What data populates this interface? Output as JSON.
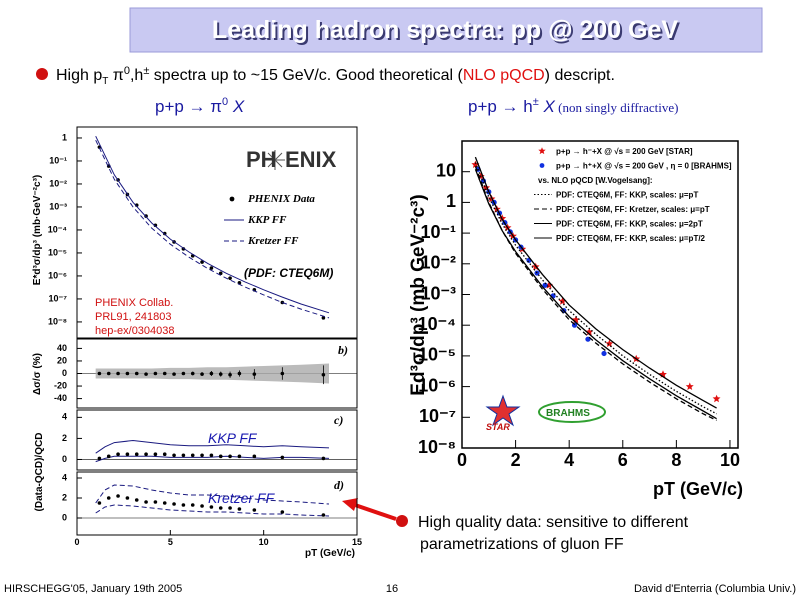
{
  "title": "Leading hadron spectra: pp @ 200 GeV",
  "bullets": [
    [
      "High p",
      "T",
      " π",
      "0",
      ",h",
      "±",
      " spectra up to ~15 GeV/c. Good theoretical (",
      "NLO pQCD",
      ") descript."
    ],
    [
      "High quality data: sensitive to different",
      "parametrizations of gluon FF"
    ]
  ],
  "subtitles": [
    [
      "p+p → π",
      "0",
      " X"
    ],
    [
      "p+p → h",
      "±",
      " X",
      " (non singly diffractive)"
    ]
  ],
  "footer": {
    "left": "HIRSCHEGG'05, January 19th 2005",
    "center": "16",
    "right": "David d'Enterria (Columbia Univ.)"
  },
  "chart_data": [
    {
      "type": "scatter",
      "log_y": true,
      "ylabel": "E*d³σ/dp³ (mb·GeV⁻²c³)",
      "xlim": [
        0,
        15
      ],
      "ylim": [
        2e-09,
        3
      ],
      "yticks": [
        1,
        {
          "value": 0.1,
          "label": "10⁻¹"
        },
        {
          "value": 0.01,
          "label": "10⁻²"
        },
        {
          "value": 0.001,
          "label": "10⁻³"
        },
        {
          "value": 0.0001,
          "label": "10⁻⁴"
        },
        {
          "value": 1e-05,
          "label": "10⁻⁵"
        },
        {
          "value": 1e-06,
          "label": "10⁻⁶"
        },
        {
          "value": 1e-07,
          "label": "10⁻⁷"
        },
        {
          "value": 1e-08,
          "label": "10⁻⁸"
        }
      ],
      "annotations": [
        "PH",
        "ENIX",
        "(PDF: CTEQ6M)",
        "PHENIX Collab.",
        "PRL91, 241803",
        "hep-ex/0304038"
      ],
      "series": [
        {
          "name": "PHENIX Data",
          "color": "#000000",
          "mode": "markers",
          "marker": "circle",
          "x": [
            1.2,
            1.7,
            2.2,
            2.7,
            3.2,
            3.7,
            4.2,
            4.7,
            5.2,
            5.7,
            6.2,
            6.7,
            7.2,
            7.7,
            8.2,
            8.7,
            9.5,
            11,
            13.2
          ],
          "values": [
            0.4,
            0.06,
            0.015,
            0.0035,
            0.0012,
            0.0004,
            0.00016,
            7e-05,
            3e-05,
            1.5e-05,
            7.5e-06,
            4e-06,
            2.2e-06,
            1.3e-06,
            8e-07,
            5e-07,
            2.5e-07,
            7e-08,
            1.5e-08
          ]
        },
        {
          "name": "KKP FF",
          "color": "#1a1a80",
          "mode": "line",
          "line_style": "solid",
          "x": [
            1,
            2,
            3,
            4,
            5,
            6,
            7,
            8,
            9,
            10,
            11,
            12,
            13.5
          ],
          "values": [
            1.2,
            0.025,
            0.0016,
            0.0002,
            4e-05,
            1.1e-05,
            3.5e-06,
            1.3e-06,
            5.5e-07,
            2.5e-07,
            1.2e-07,
            6e-08,
            2.5e-08
          ]
        },
        {
          "name": "Kretzer FF",
          "color": "#1a1a80",
          "mode": "line",
          "line_style": "dashed",
          "x": [
            1,
            2,
            3,
            4,
            5,
            6,
            7,
            8,
            9,
            10,
            11,
            12,
            13.5
          ],
          "values": [
            0.8,
            0.016,
            0.001,
            0.00012,
            2.4e-05,
            6.5e-06,
            2.1e-06,
            8e-07,
            3.3e-07,
            1.5e-07,
            7e-08,
            3.6e-08,
            1.5e-08
          ]
        }
      ]
    },
    {
      "type": "scatter",
      "ylabel": "Δσ/σ (%)",
      "xlim": [
        0,
        15
      ],
      "ylim": [
        -55,
        55
      ],
      "yticks": [
        -40,
        -20,
        0,
        20,
        40
      ],
      "annotations": [
        "b)"
      ],
      "series": [
        {
          "color": "#aaaaaa",
          "mode": "band",
          "x": [
            1,
            2,
            3,
            4,
            5,
            6,
            7,
            8,
            9,
            10,
            11,
            12,
            13.5
          ],
          "values": [
            8,
            8,
            8,
            8,
            9,
            9,
            10,
            10,
            11,
            12,
            13,
            14,
            16
          ]
        },
        {
          "color": "#000000",
          "mode": "markers",
          "marker": "circle",
          "x": [
            1.2,
            1.7,
            2.2,
            2.7,
            3.2,
            3.7,
            4.2,
            4.7,
            5.2,
            5.7,
            6.2,
            6.7,
            7.2,
            7.7,
            8.2,
            8.7,
            9.5,
            11,
            13.2
          ],
          "values": [
            0,
            0,
            0,
            0,
            0,
            -1,
            0,
            0,
            -1,
            0,
            0,
            -1,
            0,
            -1,
            -2,
            0,
            -1,
            0,
            -2
          ],
          "errors": [
            1,
            1,
            1,
            1,
            1,
            1,
            2,
            2,
            2,
            2,
            3,
            3,
            4,
            4,
            5,
            5,
            8,
            10,
            15
          ]
        }
      ]
    },
    {
      "type": "scatter",
      "ylabel": "(Data-QCD)/QCD",
      "xlim": [
        0,
        15
      ],
      "ylim": [
        -1,
        4.7
      ],
      "yticks": [
        0,
        2,
        4
      ],
      "annotations": [
        "c)",
        "KKP  FF"
      ],
      "series": [
        {
          "color": "#1a1a80",
          "mode": "line",
          "line_style": "solid",
          "x": [
            1,
            1.5,
            2,
            3,
            4,
            5,
            6,
            7,
            8,
            9,
            10,
            11,
            12,
            13.5
          ],
          "values": [
            0.6,
            1.2,
            1.6,
            1.8,
            1.6,
            1.4,
            1.3,
            1.3,
            1.4,
            1.3,
            1.2,
            1.3,
            1.2,
            1.1
          ]
        },
        {
          "color": "#1a1a80",
          "mode": "line",
          "line_style": "solid",
          "x": [
            1,
            1.5,
            2,
            3,
            4,
            5,
            6,
            7,
            8,
            9,
            10,
            11,
            12,
            13.5
          ],
          "values": [
            -0.2,
            0.1,
            0.3,
            0.3,
            0.3,
            0.2,
            0.2,
            0.2,
            0.3,
            0.2,
            0.1,
            0.2,
            0.2,
            0.1
          ]
        },
        {
          "color": "#000000",
          "mode": "markers",
          "marker": "circle",
          "x": [
            1.2,
            1.7,
            2.2,
            2.7,
            3.2,
            3.7,
            4.2,
            4.7,
            5.2,
            5.7,
            6.2,
            6.7,
            7.2,
            7.7,
            8.2,
            8.7,
            9.5,
            11,
            13.2
          ],
          "values": [
            0.1,
            0.3,
            0.5,
            0.5,
            0.5,
            0.5,
            0.5,
            0.5,
            0.4,
            0.4,
            0.4,
            0.4,
            0.4,
            0.3,
            0.3,
            0.3,
            0.3,
            0.2,
            0.1
          ]
        }
      ]
    },
    {
      "type": "scatter",
      "xlabel": "pT (GeV/c)",
      "xlim": [
        0,
        15
      ],
      "ylim": [
        -1.7,
        4.6
      ],
      "xticks": [
        0,
        5,
        10,
        15
      ],
      "yticks": [
        0,
        2,
        4
      ],
      "annotations": [
        "d)",
        "Kretzer FF"
      ],
      "series": [
        {
          "color": "#1a1a80",
          "mode": "line",
          "line_style": "dashed",
          "x": [
            1,
            1.5,
            2,
            3,
            4,
            5,
            6,
            7,
            8,
            9,
            10,
            11,
            12,
            13.5
          ],
          "values": [
            1.5,
            2.8,
            3.3,
            3.2,
            2.8,
            2.5,
            2.3,
            2.3,
            2.2,
            2.0,
            1.8,
            1.7,
            1.6,
            1.4
          ]
        },
        {
          "color": "#1a1a80",
          "mode": "line",
          "line_style": "dashed",
          "x": [
            1,
            1.5,
            2,
            3,
            4,
            5,
            6,
            7,
            8,
            9,
            10,
            11,
            12,
            13.5
          ],
          "values": [
            0.5,
            1.1,
            1.3,
            1.2,
            1.0,
            0.8,
            0.7,
            0.6,
            0.6,
            0.5,
            0.4,
            0.4,
            0.3,
            0.2
          ]
        },
        {
          "color": "#000000",
          "mode": "markers",
          "marker": "circle",
          "x": [
            1.2,
            1.7,
            2.2,
            2.7,
            3.2,
            3.7,
            4.2,
            4.7,
            5.2,
            5.7,
            6.2,
            6.7,
            7.2,
            7.7,
            8.2,
            8.7,
            9.5,
            11,
            13.2
          ],
          "values": [
            1.5,
            2.0,
            2.2,
            2.0,
            1.8,
            1.6,
            1.6,
            1.5,
            1.4,
            1.3,
            1.3,
            1.2,
            1.1,
            1.0,
            1.0,
            0.9,
            0.8,
            0.6,
            0.3
          ]
        }
      ]
    },
    {
      "type": "scatter",
      "log_y": true,
      "xlabel": "pT (GeV/c)",
      "ylabel": "Ed³σ/dp³ (mb GeV⁻²c³)",
      "xlim": [
        0,
        10.3
      ],
      "ylim": [
        1e-08,
        100
      ],
      "xticks": [
        0,
        2,
        4,
        6,
        8,
        10
      ],
      "yticks": [
        10,
        1,
        {
          "value": 0.1,
          "label": "10⁻¹"
        },
        {
          "value": 0.01,
          "label": "10⁻²"
        },
        {
          "value": 0.001,
          "label": "10⁻³"
        },
        {
          "value": 0.0001,
          "label": "10⁻⁴"
        },
        {
          "value": 1e-05,
          "label": "10⁻⁵"
        },
        {
          "value": 1e-06,
          "label": "10⁻⁶"
        },
        {
          "value": 1e-07,
          "label": "10⁻⁷"
        },
        {
          "value": 1e-08,
          "label": "10⁻⁸"
        }
      ],
      "legend_title": "vs. NLO pQCD [W.Vogelsang]:",
      "annotations": [
        "STAR",
        "BRAHMS"
      ],
      "series": [
        {
          "name": "p+p → h⁻+X @ √s = 200 GeV [STAR]",
          "color": "#e01010",
          "mode": "markers",
          "marker": "star",
          "x": [
            0.5,
            0.7,
            0.9,
            1.1,
            1.3,
            1.5,
            1.7,
            1.9,
            2.25,
            2.75,
            3.25,
            3.75,
            4.25,
            4.75,
            5.5,
            6.5,
            7.5,
            8.5,
            9.5
          ],
          "values": [
            17,
            7,
            3,
            1.3,
            0.6,
            0.3,
            0.15,
            0.08,
            0.03,
            0.008,
            0.002,
            0.0006,
            0.00015,
            6e-05,
            2.5e-05,
            8e-06,
            2.5e-06,
            1e-06,
            4e-07
          ]
        },
        {
          "name": "p+p → h⁺+X @ √s = 200 GeV , η = 0 [BRAHMS]",
          "color": "#1030e0",
          "mode": "markers",
          "marker": "circle",
          "x": [
            0.6,
            0.8,
            1.0,
            1.2,
            1.4,
            1.6,
            1.8,
            2.0,
            2.2,
            2.5,
            2.8,
            3.1,
            3.4,
            3.8,
            4.2,
            4.7,
            5.3
          ],
          "values": [
            12,
            5,
            2.2,
            1.0,
            0.45,
            0.22,
            0.11,
            0.06,
            0.035,
            0.013,
            0.005,
            0.002,
            0.0009,
            0.0003,
            0.0001,
            3.5e-05,
            1.2e-05
          ]
        },
        {
          "name": "PDF: CTEQ6M, FF: KKP, scales: μ=pT",
          "color": "#000000",
          "mode": "line",
          "line_style": "dotted",
          "x": [
            0.5,
            1,
            1.5,
            2,
            3,
            4,
            5,
            6,
            7,
            8,
            9,
            9.5
          ],
          "values": [
            20,
            1.5,
            0.2,
            0.04,
            0.003,
            0.0003,
            5e-05,
            1e-05,
            2.5e-06,
            7e-07,
            2.2e-07,
            1.3e-07
          ]
        },
        {
          "name": "PDF: CTEQ6M, FF: Kretzer, scales: μ=pT",
          "color": "#000000",
          "mode": "line",
          "line_style": "dashed",
          "x": [
            0.5,
            1,
            1.5,
            2,
            3,
            4,
            5,
            6,
            7,
            8,
            9,
            9.5
          ],
          "values": [
            15,
            1,
            0.12,
            0.022,
            0.0015,
            0.00015,
            2.6e-05,
            5.5e-06,
            1.4e-06,
            4e-07,
            1.3e-07,
            8e-08
          ]
        },
        {
          "name": "PDF: CTEQ6M, FF: KKP, scales: μ=2pT",
          "color": "#000000",
          "mode": "line",
          "line_style": "solid",
          "x": [
            0.5,
            1,
            1.5,
            2,
            3,
            4,
            5,
            6,
            7,
            8,
            9,
            9.5
          ],
          "values": [
            12,
            0.9,
            0.12,
            0.025,
            0.0018,
            0.00019,
            3.3e-05,
            7e-06,
            1.8e-06,
            5e-07,
            1.6e-07,
            9e-08
          ]
        },
        {
          "name": "PDF: CTEQ6M, FF: KKP, scales: μ=pT/2",
          "color": "#000000",
          "mode": "line",
          "line_style": "solid",
          "x": [
            0.5,
            1,
            1.5,
            2,
            3,
            4,
            5,
            6,
            7,
            8,
            9,
            9.5
          ],
          "values": [
            30,
            2.2,
            0.28,
            0.06,
            0.0045,
            0.00045,
            7.5e-05,
            1.6e-05,
            4e-06,
            1.1e-06,
            3.5e-07,
            2e-07
          ]
        }
      ]
    }
  ]
}
